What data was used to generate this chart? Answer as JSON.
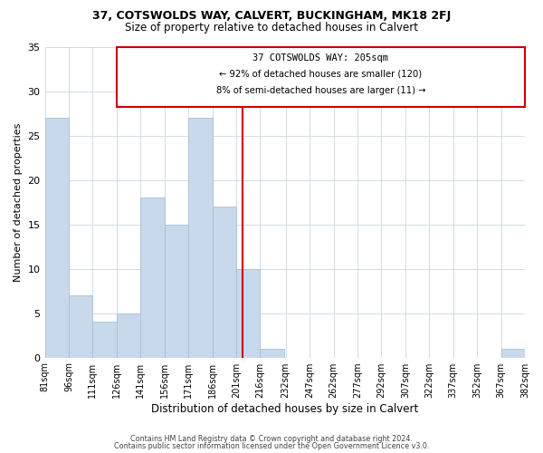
{
  "title": "37, COTSWOLDS WAY, CALVERT, BUCKINGHAM, MK18 2FJ",
  "subtitle": "Size of property relative to detached houses in Calvert",
  "xlabel": "Distribution of detached houses by size in Calvert",
  "ylabel": "Number of detached properties",
  "bar_color": "#c8d9ec",
  "bar_edge_color": "#a8c0d8",
  "bin_edges": [
    81,
    96,
    111,
    126,
    141,
    156,
    171,
    186,
    201,
    216,
    232,
    247,
    262,
    277,
    292,
    307,
    322,
    337,
    352,
    367,
    382
  ],
  "bar_heights": [
    27,
    7,
    4,
    5,
    18,
    15,
    27,
    17,
    10,
    1,
    0,
    0,
    0,
    0,
    0,
    0,
    0,
    0,
    0,
    1
  ],
  "tick_labels": [
    "81sqm",
    "96sqm",
    "111sqm",
    "126sqm",
    "141sqm",
    "156sqm",
    "171sqm",
    "186sqm",
    "201sqm",
    "216sqm",
    "232sqm",
    "247sqm",
    "262sqm",
    "277sqm",
    "292sqm",
    "307sqm",
    "322sqm",
    "337sqm",
    "352sqm",
    "367sqm",
    "382sqm"
  ],
  "vline_x": 205,
  "vline_color": "#cc0000",
  "annotation_title": "37 COTSWOLDS WAY: 205sqm",
  "annotation_line1": "← 92% of detached houses are smaller (120)",
  "annotation_line2": "8% of semi-detached houses are larger (11) →",
  "annotation_box_color": "#ffffff",
  "annotation_box_edge": "#cc0000",
  "ylim": [
    0,
    35
  ],
  "yticks": [
    0,
    5,
    10,
    15,
    20,
    25,
    30,
    35
  ],
  "footer1": "Contains HM Land Registry data © Crown copyright and database right 2024.",
  "footer2": "Contains public sector information licensed under the Open Government Licence v3.0.",
  "background_color": "#ffffff",
  "grid_color": "#d0dce8"
}
